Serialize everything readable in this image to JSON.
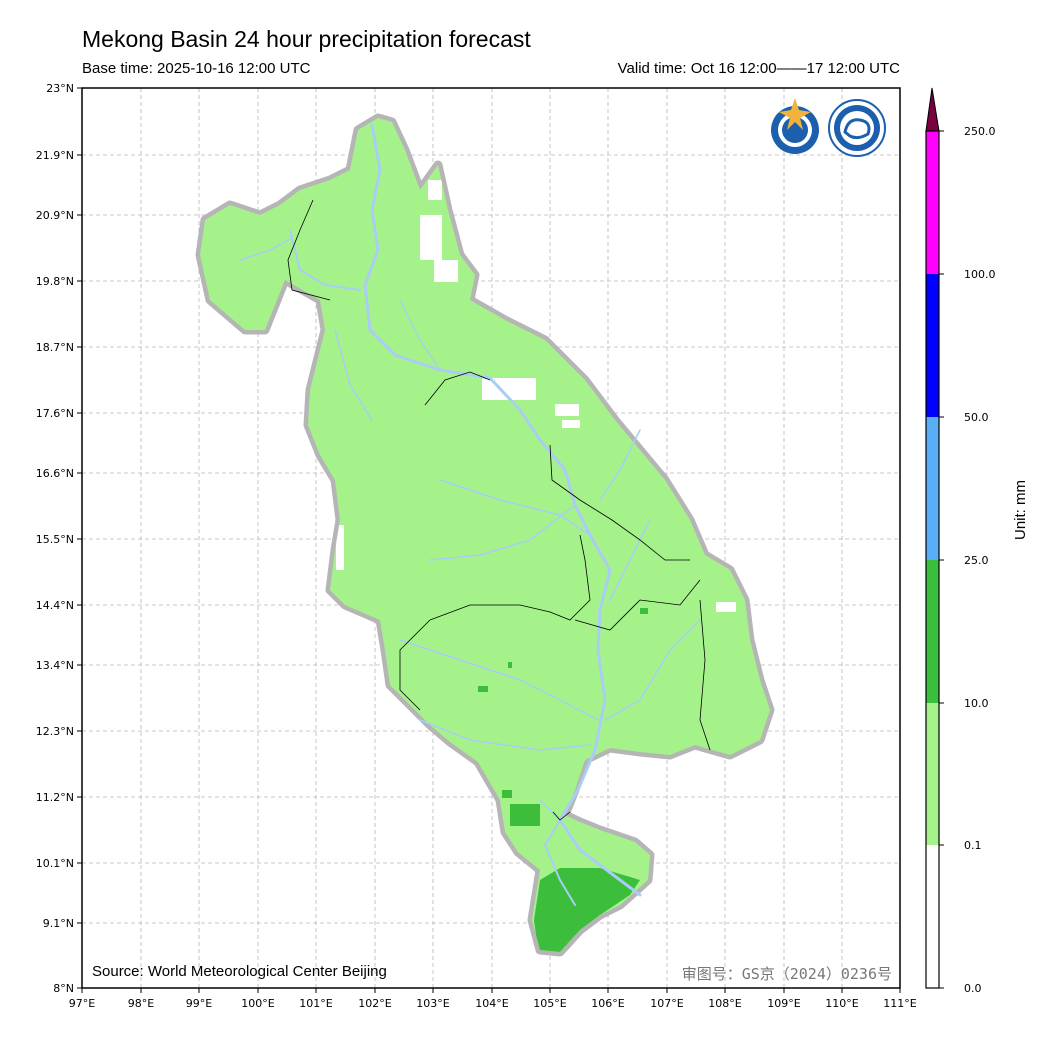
{
  "header": {
    "title": "Mekong Basin 24 hour precipitation forecast",
    "base_time": "Base time: 2025-10-16 12:00 UTC",
    "valid_time": "Valid time: Oct 16 12:00——17 12:00 UTC"
  },
  "map": {
    "lon_ticks": [
      "97°E",
      "98°E",
      "99°E",
      "100°E",
      "101°E",
      "102°E",
      "103°E",
      "104°E",
      "105°E",
      "106°E",
      "107°E",
      "108°E",
      "109°E",
      "110°E",
      "111°E"
    ],
    "lat_ticks": [
      "23°N",
      "21.9°N",
      "20.9°N",
      "19.8°N",
      "18.7°N",
      "17.6°N",
      "16.6°N",
      "15.5°N",
      "14.4°N",
      "13.4°N",
      "12.3°N",
      "11.2°N",
      "10.1°N",
      "9.1°N",
      "8°N"
    ],
    "lon_range": [
      97,
      111
    ],
    "lat_range": [
      8,
      23
    ],
    "basin_fill_color": "#a5f28a",
    "heavy_rain_color": "#3cbd3c",
    "river_color": "#a9cdf5",
    "outline_color": "#b5b5b5",
    "logos": [
      "wmo-logo",
      "cma-logo"
    ]
  },
  "footer": {
    "source": "Source: World Meteorological Center Beijing",
    "approval": "审图号：GS京（2024）0236号"
  },
  "colorbar": {
    "unit": "Unit: mm",
    "labels": [
      "250.0",
      "100.0",
      "50.0",
      "25.0",
      "10.0",
      "0.1",
      "0.0"
    ],
    "colors": [
      "#ff00ff",
      "#0000ff",
      "#5aaef5",
      "#3cbd3c",
      "#a5f28a",
      "#ffffff"
    ],
    "extend_color": "#7a0040"
  }
}
